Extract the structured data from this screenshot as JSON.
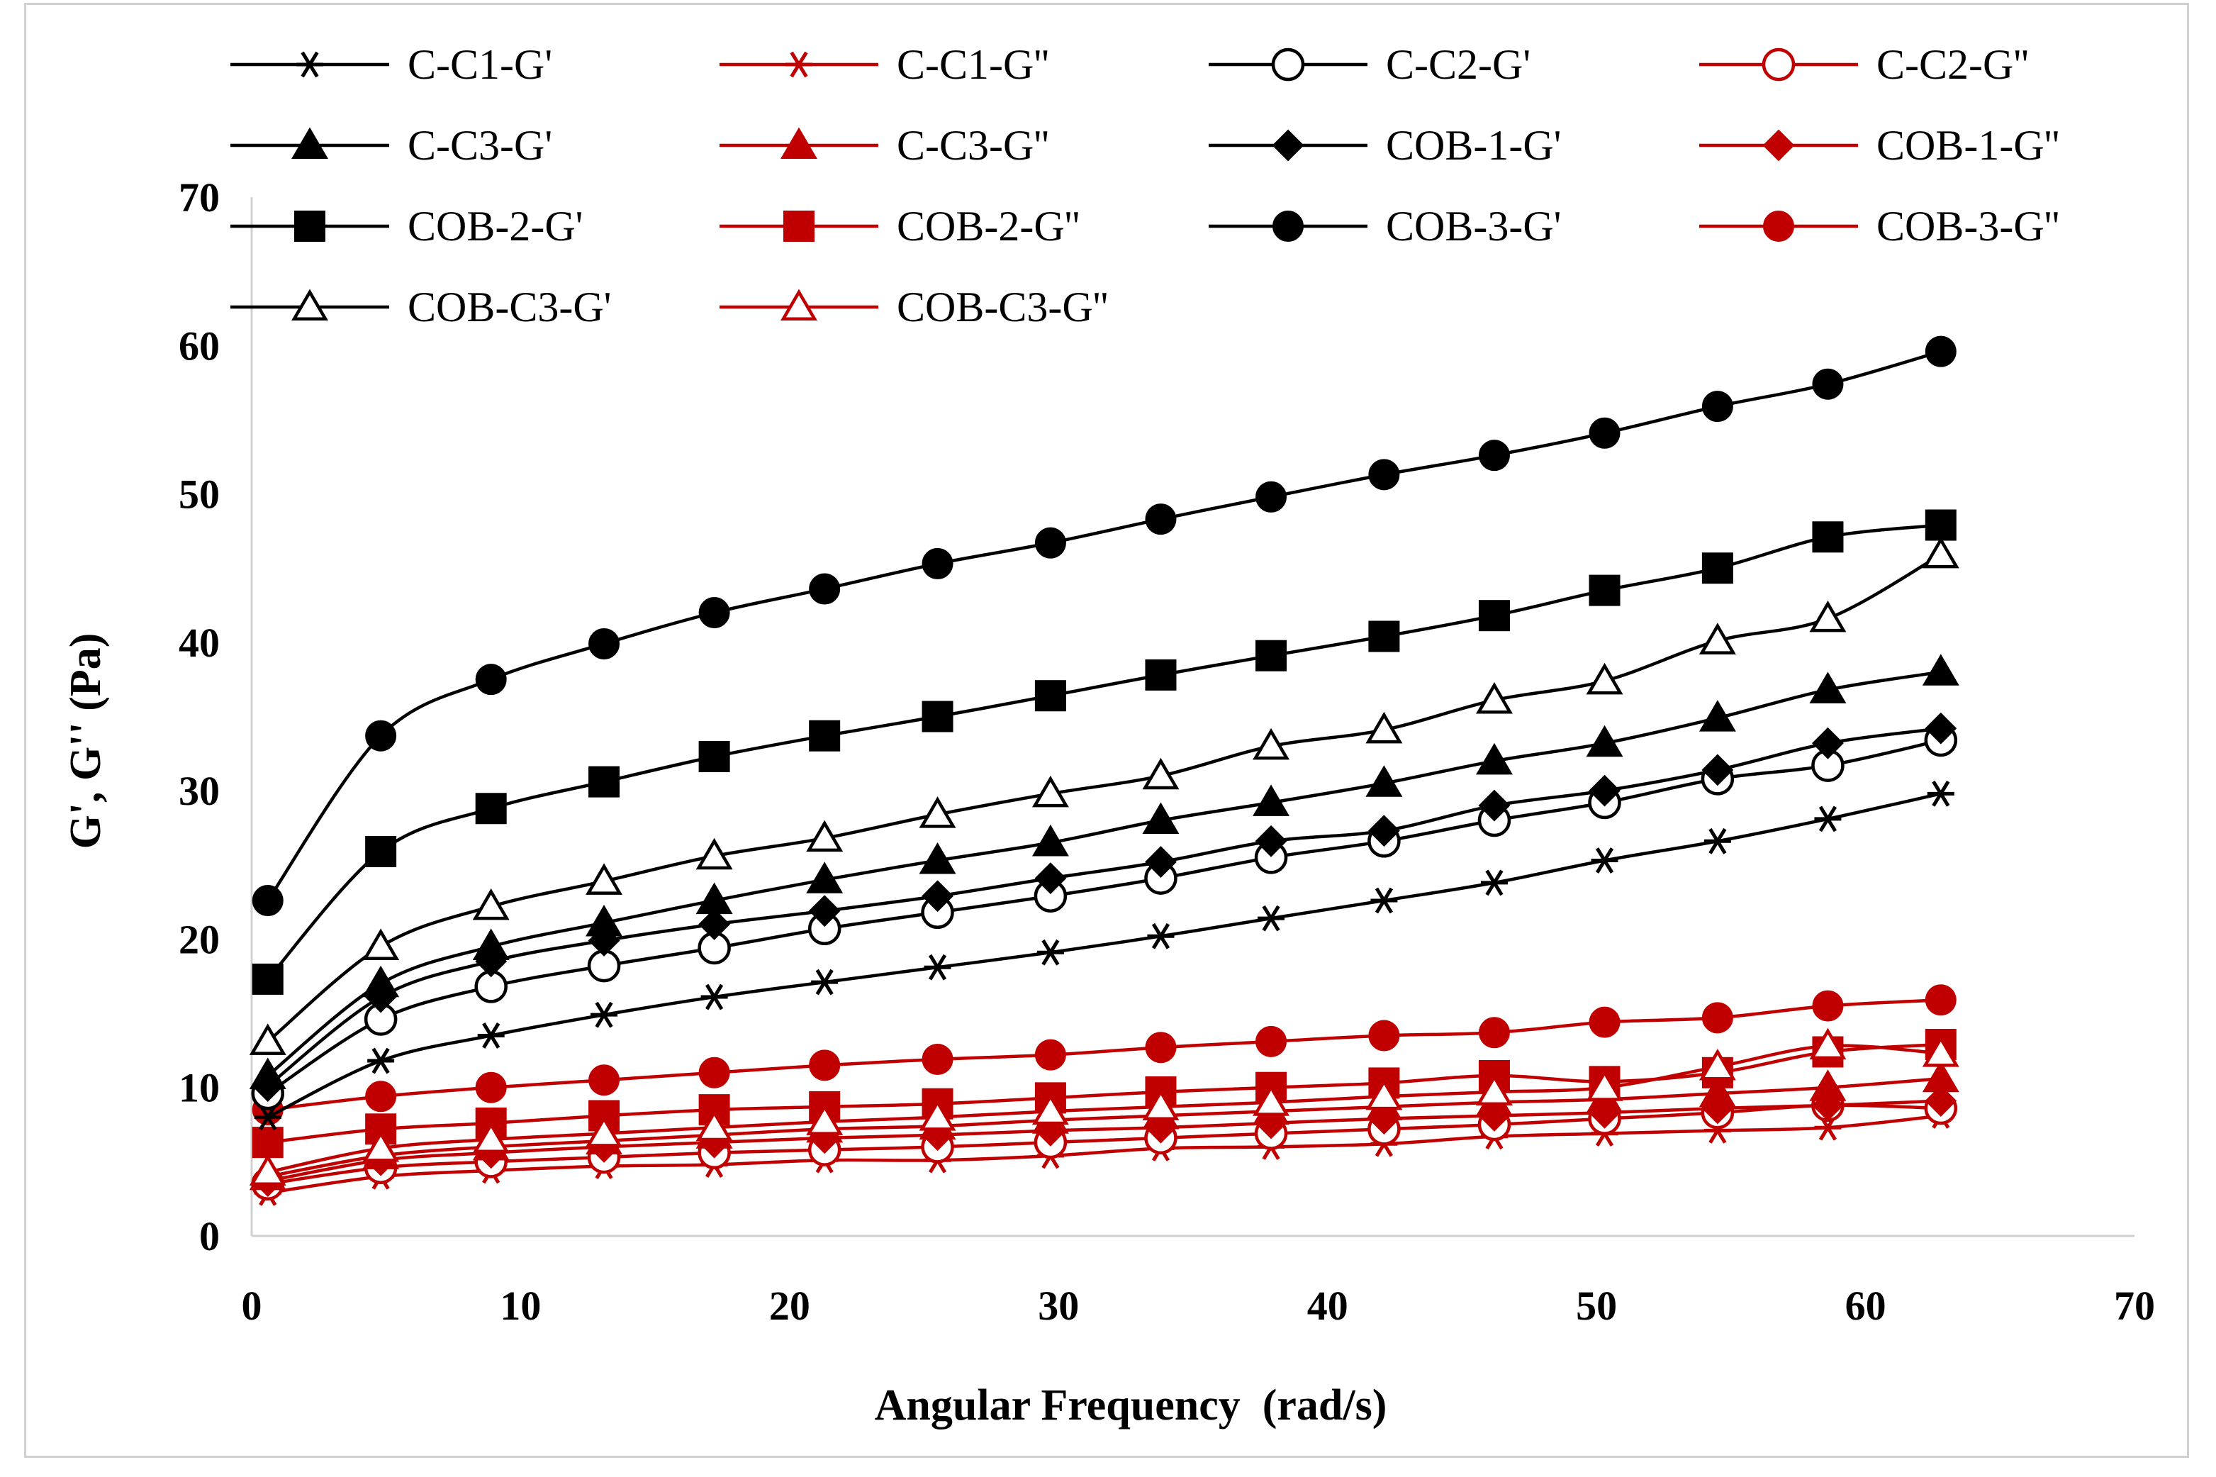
{
  "chart_data": {
    "type": "line",
    "title": "",
    "xlabel": "Angular Frequency  (rad/s)",
    "ylabel": "G', G'' (Pa)",
    "xlim": [
      0,
      70
    ],
    "ylim": [
      0,
      70
    ],
    "xticks": [
      0,
      10,
      20,
      30,
      40,
      50,
      60,
      70
    ],
    "yticks": [
      0,
      10,
      20,
      30,
      40,
      50,
      60,
      70
    ],
    "grid": false,
    "legend_position": "top",
    "x": [
      0.6,
      4.8,
      8.9,
      13.1,
      17.2,
      21.3,
      25.5,
      29.7,
      33.8,
      37.9,
      42.1,
      46.2,
      50.3,
      54.5,
      58.6,
      62.8
    ],
    "colors": {
      "storage": "#000000",
      "loss": "#c00000"
    },
    "series": [
      {
        "name": "C-C1-G'",
        "color": "#000000",
        "marker": "asterisk",
        "values": [
          8.0,
          11.8,
          13.5,
          14.9,
          16.1,
          17.1,
          18.1,
          19.1,
          20.2,
          21.4,
          22.6,
          23.8,
          25.3,
          26.6,
          28.1,
          29.8
        ]
      },
      {
        "name": "C-C1-G''",
        "color": "#c00000",
        "marker": "asterisk",
        "values": [
          2.9,
          4.0,
          4.4,
          4.7,
          4.8,
          5.1,
          5.1,
          5.4,
          5.9,
          6.0,
          6.2,
          6.7,
          6.9,
          7.1,
          7.3,
          8.1
        ]
      },
      {
        "name": "C-C2-G'",
        "color": "#000000",
        "marker": "circle-open",
        "values": [
          9.6,
          14.6,
          16.8,
          18.2,
          19.4,
          20.7,
          21.8,
          22.9,
          24.1,
          25.5,
          26.6,
          28.0,
          29.2,
          30.8,
          31.7,
          33.4
        ]
      },
      {
        "name": "C-C2-G''",
        "color": "#c00000",
        "marker": "circle-open",
        "values": [
          3.5,
          4.6,
          5.0,
          5.3,
          5.6,
          5.8,
          6.0,
          6.3,
          6.6,
          6.9,
          7.2,
          7.5,
          7.9,
          8.3,
          8.8,
          8.6
        ]
      },
      {
        "name": "C-C3-G'",
        "color": "#000000",
        "marker": "triangle-filled",
        "values": [
          10.8,
          17.0,
          19.5,
          21.1,
          22.6,
          24.0,
          25.3,
          26.5,
          28.0,
          29.2,
          30.5,
          32.0,
          33.2,
          34.9,
          36.8,
          38.0
        ]
      },
      {
        "name": "C-C3-G''",
        "color": "#c00000",
        "marker": "triangle-filled",
        "values": [
          4.0,
          5.4,
          6.0,
          6.4,
          6.8,
          7.2,
          7.4,
          7.8,
          8.1,
          8.4,
          8.7,
          9.0,
          9.2,
          9.6,
          10.0,
          10.6
        ]
      },
      {
        "name": "COB-1-G'",
        "color": "#000000",
        "marker": "diamond-filled",
        "values": [
          10.1,
          16.1,
          18.5,
          19.9,
          21.0,
          21.9,
          22.9,
          24.1,
          25.2,
          26.6,
          27.3,
          29.0,
          30.0,
          31.4,
          33.2,
          34.2
        ]
      },
      {
        "name": "COB-1-G''",
        "color": "#c00000",
        "marker": "diamond-filled",
        "values": [
          3.7,
          5.1,
          5.6,
          6.0,
          6.3,
          6.6,
          6.8,
          7.1,
          7.3,
          7.6,
          7.9,
          8.1,
          8.3,
          8.6,
          8.8,
          9.1
        ]
      },
      {
        "name": "COB-2-G'",
        "color": "#000000",
        "marker": "square-filled",
        "values": [
          17.3,
          25.9,
          28.8,
          30.6,
          32.3,
          33.7,
          35.0,
          36.4,
          37.8,
          39.1,
          40.4,
          41.8,
          43.5,
          45.0,
          47.1,
          47.9
        ]
      },
      {
        "name": "COB-2-G''",
        "color": "#c00000",
        "marker": "square-filled",
        "values": [
          6.3,
          7.2,
          7.6,
          8.1,
          8.5,
          8.7,
          8.9,
          9.3,
          9.7,
          10.0,
          10.3,
          10.8,
          10.4,
          11.0,
          12.4,
          12.9
        ]
      },
      {
        "name": "COB-3-G'",
        "color": "#000000",
        "marker": "circle-filled",
        "values": [
          22.6,
          33.7,
          37.5,
          39.9,
          42.0,
          43.6,
          45.3,
          46.7,
          48.3,
          49.8,
          51.3,
          52.6,
          54.1,
          55.9,
          57.4,
          59.6
        ]
      },
      {
        "name": "COB-3-G''",
        "color": "#c00000",
        "marker": "circle-filled",
        "values": [
          8.5,
          9.4,
          10.0,
          10.5,
          11.0,
          11.5,
          11.9,
          12.2,
          12.7,
          13.1,
          13.5,
          13.7,
          14.4,
          14.7,
          15.5,
          15.9
        ]
      },
      {
        "name": "COB-C3-G'",
        "color": "#000000",
        "marker": "triangle-open",
        "values": [
          13.1,
          19.5,
          22.2,
          23.9,
          25.6,
          26.8,
          28.4,
          29.8,
          31.0,
          33.0,
          34.1,
          36.1,
          37.4,
          40.1,
          41.6,
          45.9
        ]
      },
      {
        "name": "COB-C3-G''",
        "color": "#c00000",
        "marker": "triangle-open",
        "values": [
          4.3,
          5.9,
          6.5,
          6.9,
          7.3,
          7.7,
          8.0,
          8.4,
          8.7,
          9.0,
          9.4,
          9.7,
          10.0,
          11.4,
          12.8,
          12.3
        ]
      }
    ]
  }
}
